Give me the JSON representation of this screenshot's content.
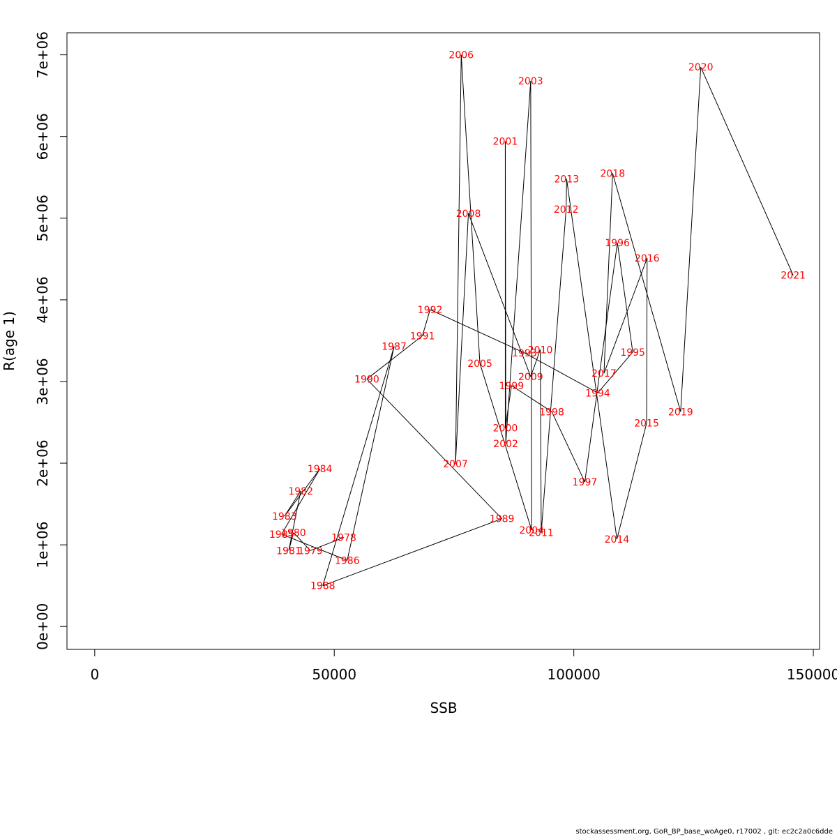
{
  "chart_data": {
    "type": "line",
    "xlabel": "SSB",
    "ylabel": "R(age 1)",
    "xlim": [
      -5800,
      151300
    ],
    "ylim": [
      -280000,
      7270000
    ],
    "xticks": [
      0,
      50000,
      100000,
      150000
    ],
    "xtick_labels": [
      "0",
      "50000",
      "100000",
      "150000"
    ],
    "yticks": [
      0,
      1000000,
      2000000,
      3000000,
      4000000,
      5000000,
      6000000,
      7000000
    ],
    "ytick_labels": [
      "0e+00",
      "1e+06",
      "2e+06",
      "3e+06",
      "4e+06",
      "5e+06",
      "6e+06",
      "7e+06"
    ],
    "line_color": "#000000",
    "label_color": "#ff0000",
    "points": [
      {
        "year": "1978",
        "x": 52000,
        "y": 1090000
      },
      {
        "year": "1979",
        "x": 45000,
        "y": 930000
      },
      {
        "year": "1980",
        "x": 41500,
        "y": 1150000
      },
      {
        "year": "1981",
        "x": 40500,
        "y": 930000
      },
      {
        "year": "1982",
        "x": 43000,
        "y": 1660000
      },
      {
        "year": "1983",
        "x": 39600,
        "y": 1350000
      },
      {
        "year": "1984",
        "x": 47000,
        "y": 1930000
      },
      {
        "year": "1985",
        "x": 39000,
        "y": 1130000
      },
      {
        "year": "1986",
        "x": 52700,
        "y": 810000
      },
      {
        "year": "1987",
        "x": 62500,
        "y": 3430000
      },
      {
        "year": "1988",
        "x": 47600,
        "y": 500000
      },
      {
        "year": "1989",
        "x": 85000,
        "y": 1320000
      },
      {
        "year": "1990",
        "x": 56800,
        "y": 3030000
      },
      {
        "year": "1991",
        "x": 68400,
        "y": 3560000
      },
      {
        "year": "1992",
        "x": 70000,
        "y": 3880000
      },
      {
        "year": "1993",
        "x": 89700,
        "y": 3350000
      },
      {
        "year": "1994",
        "x": 105000,
        "y": 2860000
      },
      {
        "year": "1995",
        "x": 112300,
        "y": 3360000
      },
      {
        "year": "1996",
        "x": 109100,
        "y": 4700000
      },
      {
        "year": "1997",
        "x": 102300,
        "y": 1770000
      },
      {
        "year": "1998",
        "x": 95400,
        "y": 2630000
      },
      {
        "year": "1999",
        "x": 87000,
        "y": 2950000
      },
      {
        "year": "2000",
        "x": 85700,
        "y": 2430000
      },
      {
        "year": "2001",
        "x": 85700,
        "y": 5940000
      },
      {
        "year": "2002",
        "x": 85800,
        "y": 2240000
      },
      {
        "year": "2003",
        "x": 91000,
        "y": 6680000
      },
      {
        "year": "2004",
        "x": 91200,
        "y": 1180000
      },
      {
        "year": "2005",
        "x": 80400,
        "y": 3220000
      },
      {
        "year": "2006",
        "x": 76500,
        "y": 7000000
      },
      {
        "year": "2007",
        "x": 75300,
        "y": 1990000
      },
      {
        "year": "2008",
        "x": 78000,
        "y": 5060000
      },
      {
        "year": "2009",
        "x": 91000,
        "y": 3060000
      },
      {
        "year": "2010",
        "x": 93000,
        "y": 3390000
      },
      {
        "year": "2011",
        "x": 93200,
        "y": 1150000
      },
      {
        "year": "2012",
        "x": 98400,
        "y": 5110000
      },
      {
        "year": "2013",
        "x": 98500,
        "y": 5480000
      },
      {
        "year": "2014",
        "x": 109000,
        "y": 1070000
      },
      {
        "year": "2015",
        "x": 115200,
        "y": 2490000
      },
      {
        "year": "2016",
        "x": 115300,
        "y": 4510000
      },
      {
        "year": "2017",
        "x": 106300,
        "y": 3100000
      },
      {
        "year": "2018",
        "x": 108100,
        "y": 5550000
      },
      {
        "year": "2019",
        "x": 122300,
        "y": 2630000
      },
      {
        "year": "2020",
        "x": 126500,
        "y": 6850000
      },
      {
        "year": "2021",
        "x": 145800,
        "y": 4300000
      }
    ]
  },
  "footer": "stockassessment.org, GoR_BP_base_woAge0, r17002 , git: ec2c2a0c6dde"
}
